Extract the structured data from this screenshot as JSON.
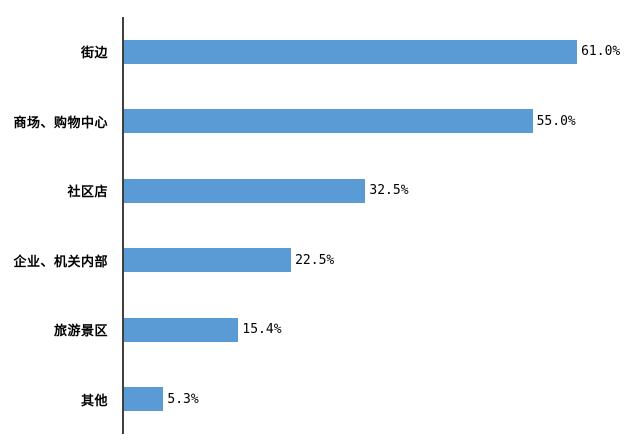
{
  "chart_data": {
    "type": "bar",
    "orientation": "horizontal",
    "title": "",
    "xlabel": "",
    "ylabel": "",
    "categories": [
      "街边",
      "商场、购物中心",
      "社区店",
      "企业、机关内部",
      "旅游景区",
      "其他"
    ],
    "values": [
      61.0,
      55.0,
      32.5,
      22.5,
      15.4,
      5.3
    ],
    "value_labels": [
      "61.0%",
      "55.0%",
      "32.5%",
      "22.5%",
      "15.4%",
      "5.3%"
    ],
    "xlim": [
      0,
      70
    ],
    "grid": false,
    "legend": false,
    "bar_color": "#5B9BD5",
    "axis_color": "#404040",
    "background_color": "#ffffff"
  },
  "layout_note": ""
}
